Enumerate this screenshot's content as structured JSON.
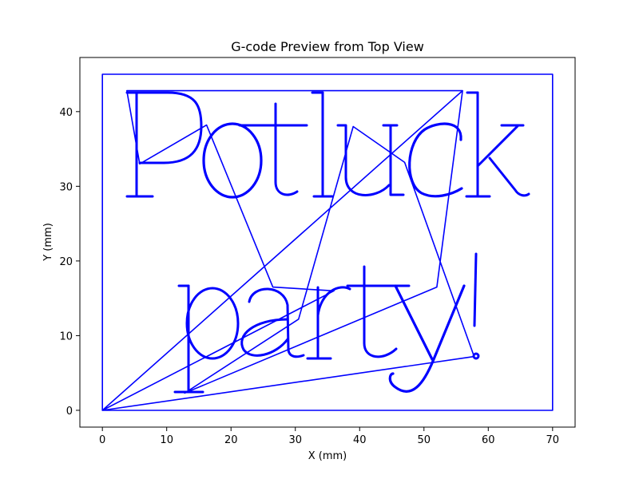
{
  "chart_data": {
    "type": "line",
    "title": "G-code Preview from Top View",
    "xlabel": "X (mm)",
    "ylabel": "Y (mm)",
    "xlim": [
      -3.5,
      73.5
    ],
    "ylim": [
      -2.25,
      47.25
    ],
    "x_ticks": [
      0,
      10,
      20,
      30,
      40,
      50,
      60,
      70
    ],
    "y_ticks": [
      0,
      10,
      20,
      30,
      40
    ],
    "grid": false,
    "line_color": "#0000ff",
    "text_paths": [
      "Potluck",
      "party!"
    ],
    "series": [
      {
        "name": "",
        "description": "Bed boundary rectangle",
        "x": [
          0,
          70,
          70,
          0,
          0
        ],
        "y": [
          0,
          0,
          45,
          45,
          0
        ]
      },
      {
        "name": "",
        "description": "Travel moves between strokes",
        "x": [
          0,
          56,
          3.8,
          5.8,
          16.2,
          26.5,
          36,
          0,
          57.8,
          47,
          39,
          30.5,
          12.8,
          52,
          56
        ],
        "y": [
          0,
          42.8,
          42.8,
          33,
          38.2,
          16.5,
          16,
          0,
          7.2,
          33.2,
          38,
          12.2,
          2.3,
          16.5,
          42.8
        ]
      }
    ]
  }
}
